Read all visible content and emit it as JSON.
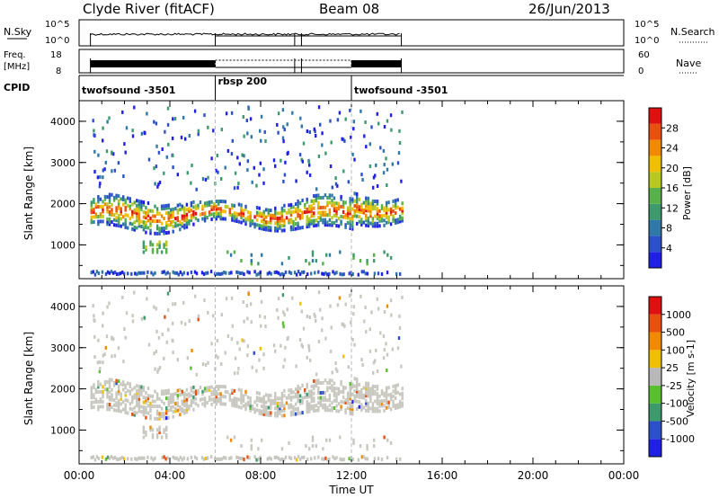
{
  "header": {
    "title": "Clyde River (fitACF)",
    "beam": "Beam 08",
    "date": "26/Jun/2013"
  },
  "panels": {
    "nsky_label": "N.Sky",
    "nsearch_label": "N.Search",
    "freq_label": "Freq.",
    "freq_unit": "[MHz]",
    "nave_label": "Nave",
    "cpid_label": "CPID",
    "left_ticks_top": [
      "10^5",
      "10^0"
    ],
    "right_ticks_top": [
      "10^5",
      "10^0"
    ],
    "left_ticks_freq": [
      "18",
      "8"
    ],
    "right_ticks_nave": [
      "60",
      "0"
    ]
  },
  "cpid": [
    {
      "name": "twofsound -3501",
      "start": 0,
      "end": 6
    },
    {
      "name": "rbsp 200",
      "start": 6,
      "end": 12
    },
    {
      "name": "twofsound -3501",
      "start": 12,
      "end": 14.2
    }
  ],
  "chart_data": [
    {
      "type": "heatmap",
      "name": "power",
      "xlabel": "",
      "ylabel": "Slant Range [km]",
      "xlim": [
        0,
        24
      ],
      "ylim": [
        180,
        4500
      ],
      "yticks": [
        1000,
        2000,
        3000,
        4000
      ],
      "colorbar": {
        "label": "Power [dB]",
        "ticks": [
          "4",
          "8",
          "12",
          "16",
          "20",
          "24",
          "28"
        ],
        "colors": [
          "#1f1fe6",
          "#2c50c8",
          "#2f78a8",
          "#3c9a6c",
          "#58b04a",
          "#b8c81e",
          "#f0c000",
          "#f08a00",
          "#e85010",
          "#e01010"
        ]
      },
      "echo_bands": [
        {
          "x": [
            0.5,
            14.2
          ],
          "y": [
            1400,
            2200
          ],
          "level": "high"
        },
        {
          "x": [
            2.8,
            3.8
          ],
          "y": [
            800,
            1000
          ],
          "level": "mid"
        },
        {
          "x": [
            6.5,
            14.0
          ],
          "y": [
            500,
            800
          ],
          "level": "low"
        },
        {
          "x": [
            12.0,
            14.2
          ],
          "y": [
            2200,
            2500
          ],
          "level": "mid"
        }
      ]
    },
    {
      "type": "heatmap",
      "name": "velocity",
      "xlabel": "Time UT",
      "ylabel": "Slant Range [km]",
      "xlim": [
        0,
        24
      ],
      "ylim": [
        180,
        4500
      ],
      "yticks": [
        1000,
        2000,
        3000,
        4000
      ],
      "xticks": [
        "00:00",
        "04:00",
        "08:00",
        "12:00",
        "16:00",
        "20:00",
        "00:00"
      ],
      "colorbar": {
        "label": "Velocity [m s-1]",
        "ticks": [
          "1000",
          "500",
          "100",
          "25",
          "-25",
          "-100",
          "-500",
          "-1000"
        ],
        "colors": [
          "#1f1fe6",
          "#2c50c8",
          "#3c9a6c",
          "#58c030",
          "#b8b8b8",
          "#f0c000",
          "#f08a00",
          "#e85010",
          "#e01010"
        ]
      }
    }
  ]
}
